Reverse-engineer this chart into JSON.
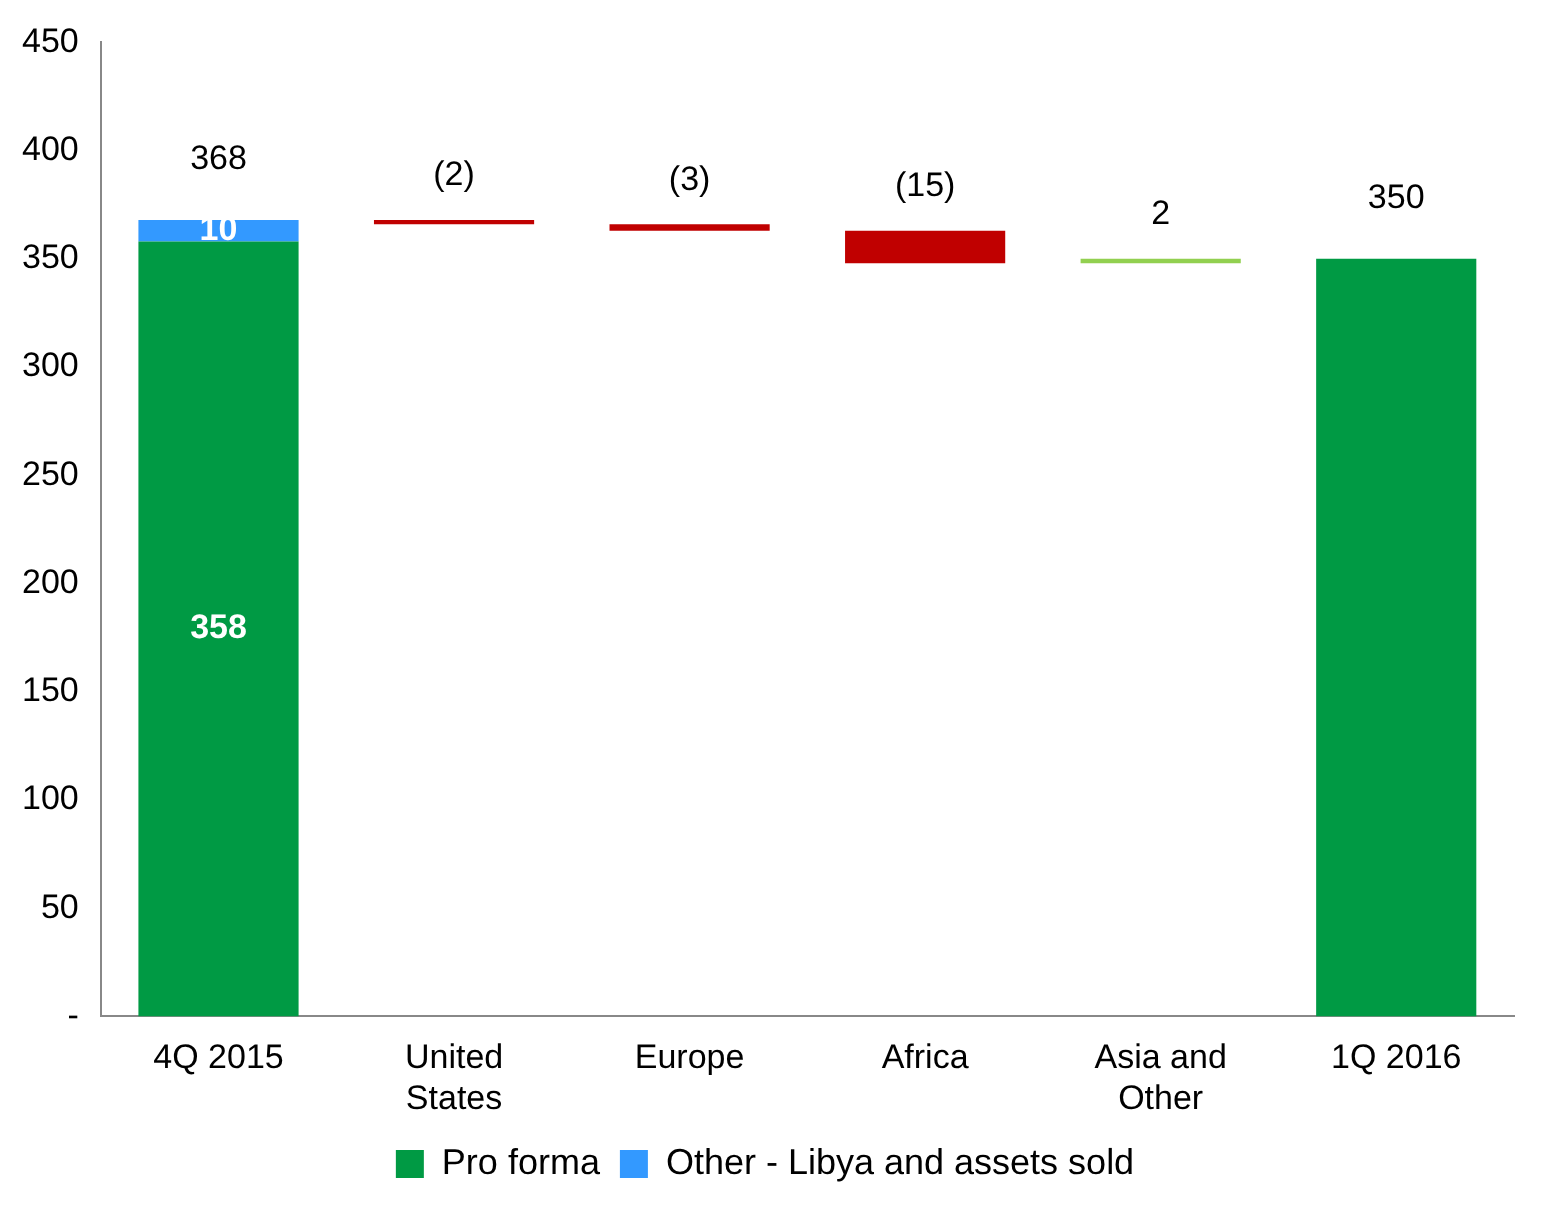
{
  "chart_data": {
    "type": "bar",
    "categories": [
      "4Q 2015",
      "United States",
      "Europe",
      "Africa",
      "Asia and Other",
      "1Q 2016"
    ],
    "stacked": true,
    "series": [
      {
        "name": "Pro forma",
        "color": "#009a44",
        "values": [
          358,
          null,
          null,
          null,
          null,
          350
        ],
        "value_labels": [
          "358",
          null,
          null,
          null,
          null,
          null
        ]
      },
      {
        "name": "Other - Libya and assets sold",
        "color": "#3399ff",
        "values": [
          10,
          null,
          null,
          null,
          null,
          null
        ],
        "value_labels": [
          "10",
          null,
          null,
          null,
          null,
          null
        ]
      },
      {
        "colors": [
          "#c00000",
          "#c00000",
          "#c00000",
          "#c00000",
          "#92d050",
          "#c00000"
        ],
        "values": [
          null,
          -2,
          -3,
          -15,
          2,
          null
        ],
        "base": [
          null,
          368,
          366,
          363,
          348,
          null
        ],
        "value_labels": [
          null,
          "(2)",
          "(3)",
          "(15)",
          "2",
          null
        ]
      }
    ],
    "totals": [
      "368",
      null,
      null,
      null,
      null,
      "350"
    ],
    "ylim": [
      0,
      450
    ],
    "yticks": [
      {
        "value": 0,
        "label": "-"
      },
      50,
      100,
      150,
      200,
      250,
      300,
      350,
      400,
      450
    ],
    "grid": false,
    "legend": "bottom"
  }
}
